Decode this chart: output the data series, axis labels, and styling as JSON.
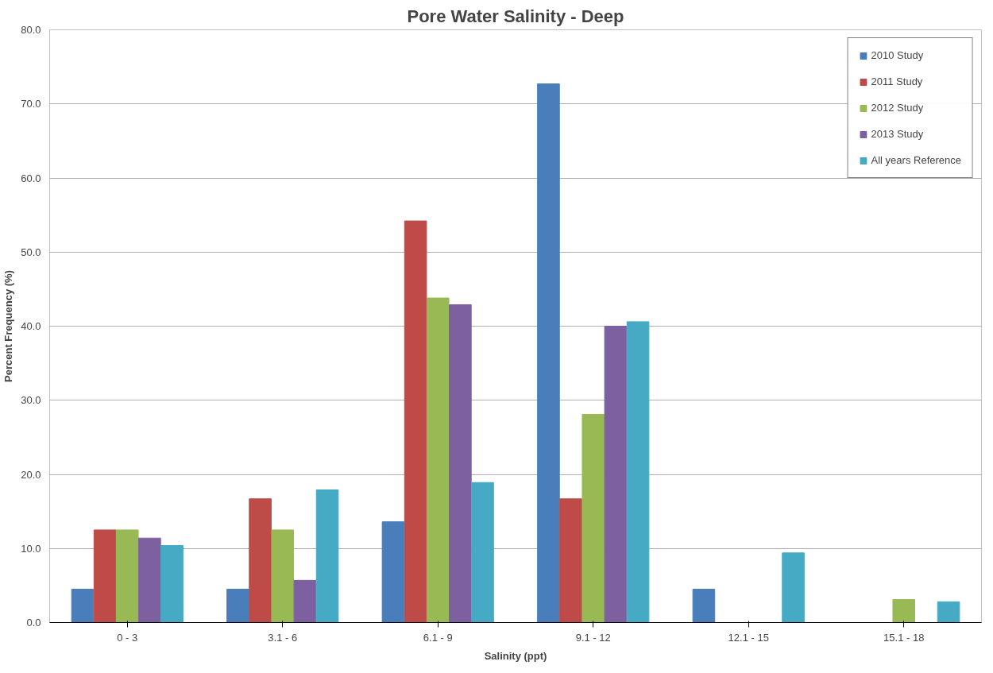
{
  "chart_data": {
    "type": "bar",
    "title": "Pore Water Salinity - Deep",
    "xlabel": "Salinity (ppt)",
    "ylabel": "Percent Frequency (%)",
    "categories": [
      "0 - 3",
      "3.1 - 6",
      "6.1 - 9",
      "9.1 - 12",
      "12.1 - 15",
      "15.1 - 18"
    ],
    "series": [
      {
        "name": "2010 Study",
        "color": "#4a7ebb",
        "values": [
          4.5,
          4.5,
          13.6,
          72.7,
          4.5,
          0
        ]
      },
      {
        "name": "2011 Study",
        "color": "#be4b48",
        "values": [
          12.5,
          16.7,
          54.2,
          16.7,
          0,
          0
        ]
      },
      {
        "name": "2012 Study",
        "color": "#98b954",
        "values": [
          12.5,
          12.5,
          43.8,
          28.1,
          0,
          3.1
        ]
      },
      {
        "name": "2013 Study",
        "color": "#7d60a0",
        "values": [
          11.4,
          5.7,
          42.9,
          40.0,
          0,
          0
        ]
      },
      {
        "name": "All years Reference",
        "color": "#46aac5",
        "values": [
          10.4,
          17.9,
          18.9,
          40.6,
          9.4,
          2.8
        ]
      }
    ],
    "ylim": [
      0,
      80
    ],
    "yticks": [
      {
        "value": 0,
        "label": "0.0"
      },
      {
        "value": 10,
        "label": "10.0"
      },
      {
        "value": 20,
        "label": "20.0"
      },
      {
        "value": 30,
        "label": "30.0"
      },
      {
        "value": 40,
        "label": "40.0"
      },
      {
        "value": 50,
        "label": "50.0"
      },
      {
        "value": 60,
        "label": "60.0"
      },
      {
        "value": 70,
        "label": "70.0"
      },
      {
        "value": 80,
        "label": "80.0"
      }
    ],
    "grid": "y",
    "legend": "top right"
  }
}
